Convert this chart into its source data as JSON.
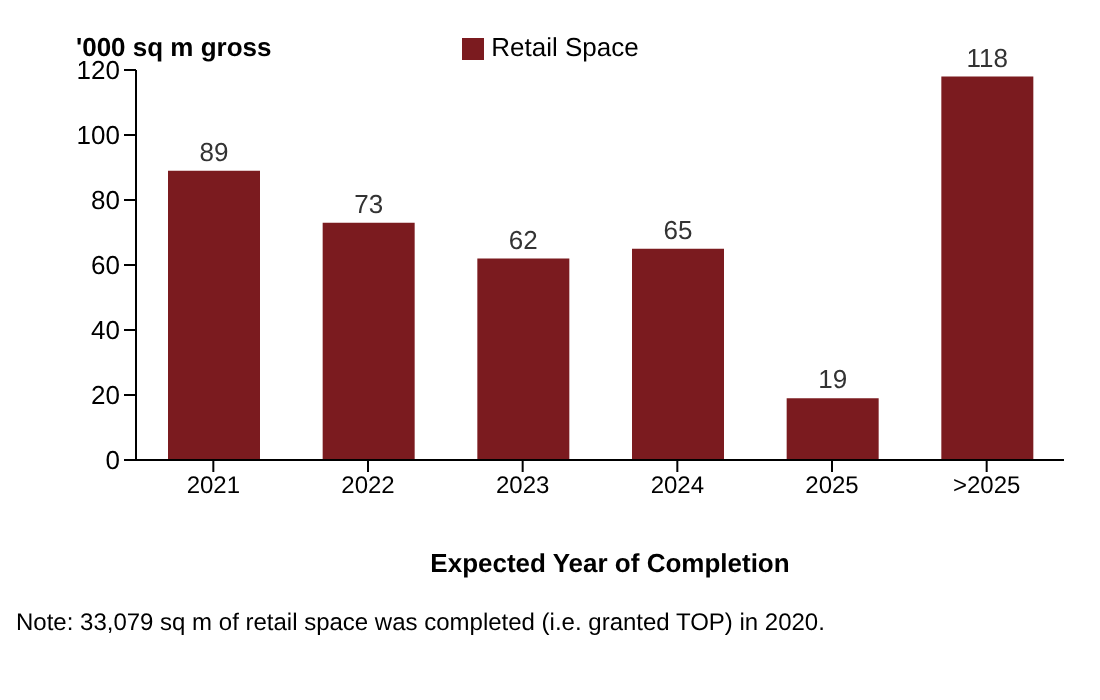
{
  "chart_data": {
    "type": "bar",
    "ylabel": "'000 sq m gross",
    "xlabel": "Expected Year of Completion",
    "categories": [
      "2021",
      "2022",
      "2023",
      "2024",
      "2025",
      ">2025"
    ],
    "series": [
      {
        "name": "Retail Space",
        "color": "#7b1b1f",
        "values": [
          89,
          73,
          62,
          65,
          19,
          118
        ]
      }
    ],
    "ylim": [
      0,
      120
    ],
    "yticks": [
      0,
      20,
      40,
      60,
      80,
      100,
      120
    ],
    "grid": false,
    "legend": "top",
    "data_labels": true,
    "annotations": [
      "Note: 33,079 sq m of retail space was completed (i.e. granted TOP) in 2020."
    ]
  }
}
